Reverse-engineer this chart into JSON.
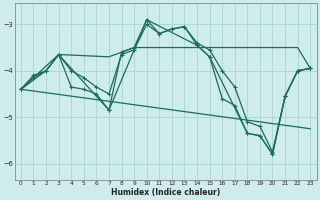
{
  "xlabel": "Humidex (Indice chaleur)",
  "bg_color": "#ceecea",
  "grid_color": "#aed8d5",
  "line_color": "#1a6b62",
  "xlim": [
    -0.5,
    23.5
  ],
  "ylim": [
    -6.35,
    -2.55
  ],
  "yticks": [
    -6,
    -5,
    -4,
    -3
  ],
  "xticks": [
    0,
    1,
    2,
    3,
    4,
    5,
    6,
    7,
    8,
    9,
    10,
    11,
    12,
    13,
    14,
    15,
    16,
    17,
    18,
    19,
    20,
    21,
    22,
    23
  ],
  "series1_x": [
    0,
    1,
    2,
    3,
    4,
    5,
    6,
    7,
    8,
    9,
    10,
    11,
    12,
    13,
    14,
    15,
    16,
    17,
    18,
    19,
    20,
    21,
    22,
    23
  ],
  "series1_y": [
    -4.4,
    -4.1,
    -4.0,
    -3.65,
    -4.35,
    -4.4,
    -4.5,
    -4.85,
    -3.6,
    -3.5,
    -2.9,
    -3.2,
    -3.1,
    -3.05,
    -3.45,
    -3.7,
    -4.6,
    -4.75,
    -5.35,
    -5.4,
    -5.8,
    -4.55,
    -4.0,
    -3.95
  ],
  "series2_x": [
    0,
    2,
    3,
    7,
    8,
    9,
    10,
    11,
    12,
    13,
    14,
    15,
    16,
    17,
    18,
    19,
    20,
    21,
    22,
    23
  ],
  "series2_y": [
    -4.4,
    -4.0,
    -3.65,
    -3.7,
    -3.6,
    -3.5,
    -3.5,
    -3.5,
    -3.5,
    -3.5,
    -3.5,
    -3.5,
    -3.5,
    -3.5,
    -3.5,
    -3.5,
    -3.5,
    -3.5,
    -3.5,
    -3.95
  ],
  "series3_x": [
    0,
    1,
    2,
    3,
    4,
    5,
    6,
    7,
    8,
    9,
    10,
    11,
    12,
    13,
    14,
    15,
    16,
    17,
    18,
    19,
    20,
    21,
    22,
    23
  ],
  "series3_y": [
    -4.4,
    -4.15,
    -4.0,
    -3.65,
    -4.0,
    -4.15,
    -4.35,
    -4.5,
    -3.65,
    -3.55,
    -3.0,
    -3.2,
    -3.1,
    -3.05,
    -3.4,
    -3.55,
    -4.0,
    -4.35,
    -5.1,
    -5.2,
    -5.75,
    -4.55,
    -4.0,
    -3.95
  ],
  "series4_x": [
    0,
    23
  ],
  "series4_y": [
    -4.4,
    -5.25
  ],
  "series5_x": [
    0,
    3,
    7,
    10,
    14,
    15,
    18,
    19,
    20,
    21,
    22,
    23
  ],
  "series5_y": [
    -4.4,
    -3.65,
    -4.85,
    -2.9,
    -3.45,
    -3.7,
    -5.35,
    -5.4,
    -5.8,
    -4.55,
    -4.0,
    -3.95
  ]
}
